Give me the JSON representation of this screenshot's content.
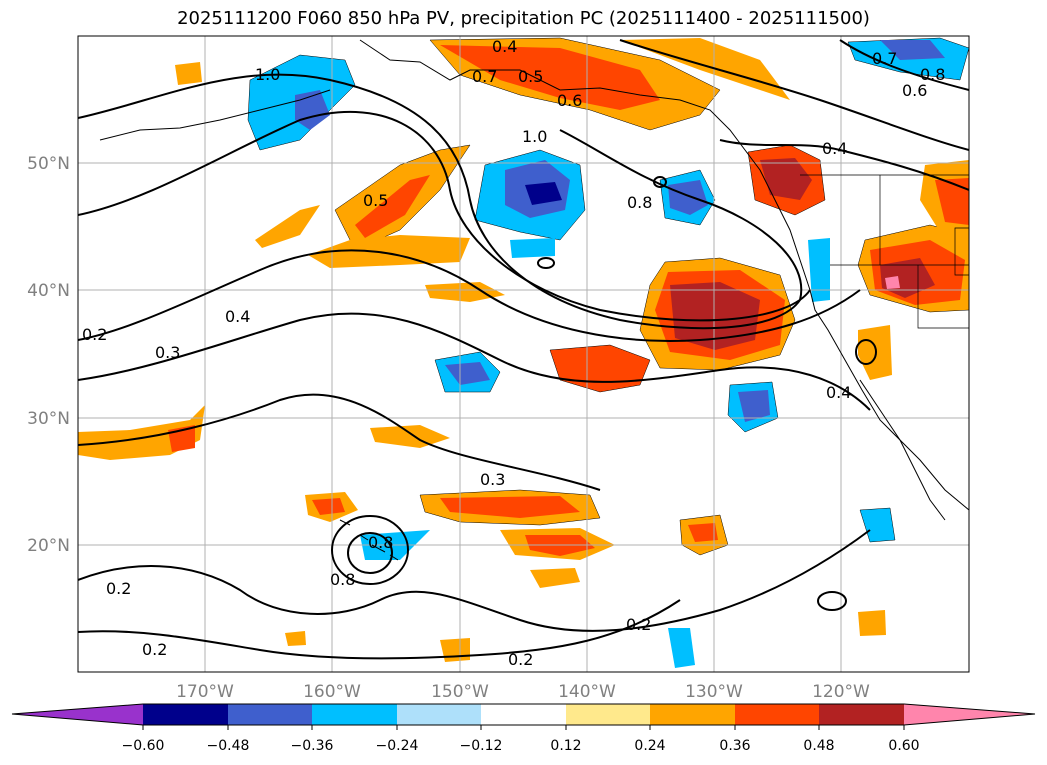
{
  "title": "2025111200 F060 850 hPa PV, precipitation PC (2025111400 - 2025111500)",
  "lat_labels": [
    "50°N",
    "40°N",
    "30°N",
    "20°N"
  ],
  "lon_labels": [
    "170°W",
    "160°W",
    "150°W",
    "140°W",
    "130°W",
    "120°W"
  ],
  "contour_labels": [
    "1.0",
    "0.4",
    "0.5",
    "0.7",
    "0.6",
    "1.0",
    "0.4",
    "0.8",
    "0.7",
    "0.8",
    "0.6",
    "0.5",
    "0.4",
    "0.3",
    "0.2",
    "0.4",
    "0.3",
    "0.2",
    "0.2",
    "0.2",
    "0.2",
    "0.8",
    "0.8"
  ],
  "colorbar": {
    "ticks": [
      "−0.60",
      "−0.48",
      "−0.36",
      "−0.24",
      "−0.12",
      "0.12",
      "0.24",
      "0.36",
      "0.48",
      "0.60"
    ],
    "colors": [
      "#9932cc",
      "#00008b",
      "#3f5fcd",
      "#00bfff",
      "#aee0fa",
      "#ffffff",
      "#ffe98c",
      "#ffa500",
      "#ff4500",
      "#b22222",
      "#ff85ac"
    ]
  },
  "chart_data": {
    "type": "map",
    "projection": "lat-lon",
    "extent": {
      "lon": [
        -180,
        -110
      ],
      "lat": [
        10,
        60
      ]
    },
    "grid": true,
    "contour_field": "850 hPa PV",
    "filled_field": "precipitation PC",
    "colorbar_levels": [
      -0.6,
      -0.48,
      -0.36,
      -0.24,
      -0.12,
      0.12,
      0.24,
      0.36,
      0.48,
      0.6
    ]
  }
}
